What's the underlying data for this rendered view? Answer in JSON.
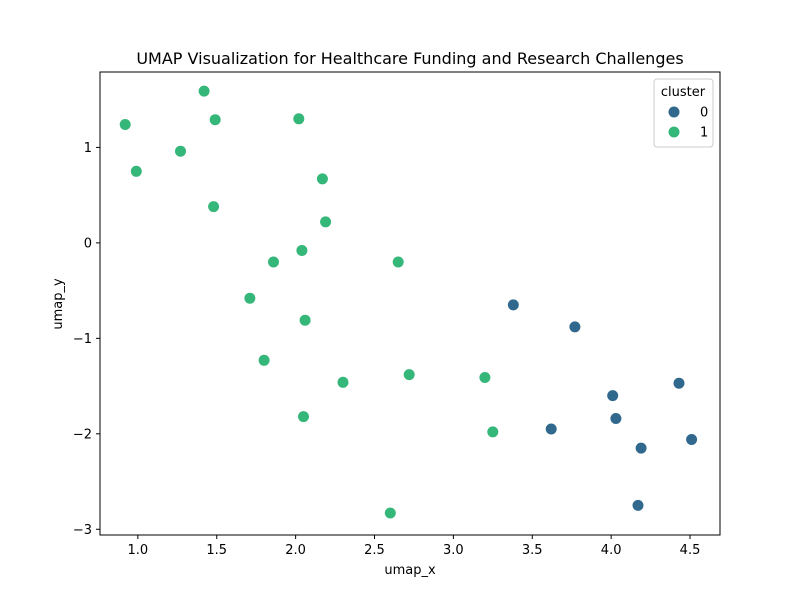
{
  "chart_data": {
    "type": "scatter",
    "title": "UMAP Visualization for Healthcare Funding and Research Challenges",
    "xlabel": "umap_x",
    "ylabel": "umap_y",
    "xlim": [
      0.76,
      4.69
    ],
    "ylim": [
      -3.06,
      1.79
    ],
    "xticks": [
      1.0,
      1.5,
      2.0,
      2.5,
      3.0,
      3.5,
      4.0,
      4.5
    ],
    "xtick_labels": [
      "1.0",
      "1.5",
      "2.0",
      "2.5",
      "3.0",
      "3.5",
      "4.0",
      "4.5"
    ],
    "yticks": [
      -3,
      -2,
      -1,
      0,
      1
    ],
    "ytick_labels": [
      "−3",
      "−2",
      "−1",
      "0",
      "1"
    ],
    "grid": false,
    "legend": {
      "title": "cluster",
      "position": "top-right",
      "entries": [
        {
          "label": "0",
          "color": "#31688e"
        },
        {
          "label": "1",
          "color": "#35b779"
        }
      ]
    },
    "series": [
      {
        "name": "0",
        "color": "#31688e",
        "points": [
          [
            3.38,
            -0.65
          ],
          [
            3.77,
            -0.88
          ],
          [
            4.01,
            -1.6
          ],
          [
            4.03,
            -1.84
          ],
          [
            4.43,
            -1.47
          ],
          [
            3.62,
            -1.95
          ],
          [
            4.19,
            -2.15
          ],
          [
            4.51,
            -2.06
          ],
          [
            4.17,
            -2.75
          ]
        ]
      },
      {
        "name": "1",
        "color": "#35b779",
        "points": [
          [
            1.42,
            1.59
          ],
          [
            0.92,
            1.24
          ],
          [
            1.49,
            1.29
          ],
          [
            2.02,
            1.3
          ],
          [
            1.27,
            0.96
          ],
          [
            0.99,
            0.75
          ],
          [
            2.17,
            0.67
          ],
          [
            1.48,
            0.38
          ],
          [
            2.19,
            0.22
          ],
          [
            2.04,
            -0.08
          ],
          [
            1.86,
            -0.2
          ],
          [
            2.65,
            -0.2
          ],
          [
            1.71,
            -0.58
          ],
          [
            2.06,
            -0.81
          ],
          [
            1.8,
            -1.23
          ],
          [
            2.3,
            -1.46
          ],
          [
            2.72,
            -1.38
          ],
          [
            3.2,
            -1.41
          ],
          [
            2.05,
            -1.82
          ],
          [
            3.25,
            -1.98
          ],
          [
            2.6,
            -2.83
          ]
        ]
      }
    ]
  }
}
